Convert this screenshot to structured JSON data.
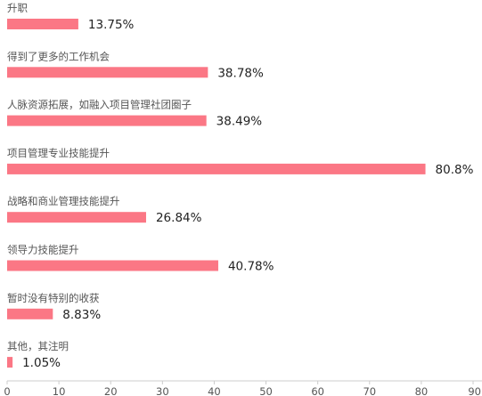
{
  "chart_data": {
    "type": "bar",
    "orientation": "horizontal",
    "categories": [
      "升职",
      "得到了更多的工作机会",
      "人脉资源拓展，如融入项目管理社团圈子",
      "项目管理专业技能提升",
      "战略和商业管理技能提升",
      "领导力技能提升",
      "暂时没有特别的收获",
      "其他，其注明"
    ],
    "values": [
      13.75,
      38.78,
      38.49,
      80.8,
      26.84,
      40.78,
      8.83,
      1.05
    ],
    "value_labels": [
      "13.75%",
      "38.78%",
      "38.49%",
      "80.8%",
      "26.84%",
      "40.78%",
      "8.83%",
      "1.05%"
    ],
    "xlim": [
      0,
      90
    ],
    "xticks": [
      0,
      10,
      20,
      30,
      40,
      50,
      60,
      70,
      80,
      90
    ],
    "grid": false,
    "colors": {
      "bar": "#fb7785",
      "value_text": "#222222",
      "category_text": "#555555",
      "axis": "#cccccc"
    }
  }
}
